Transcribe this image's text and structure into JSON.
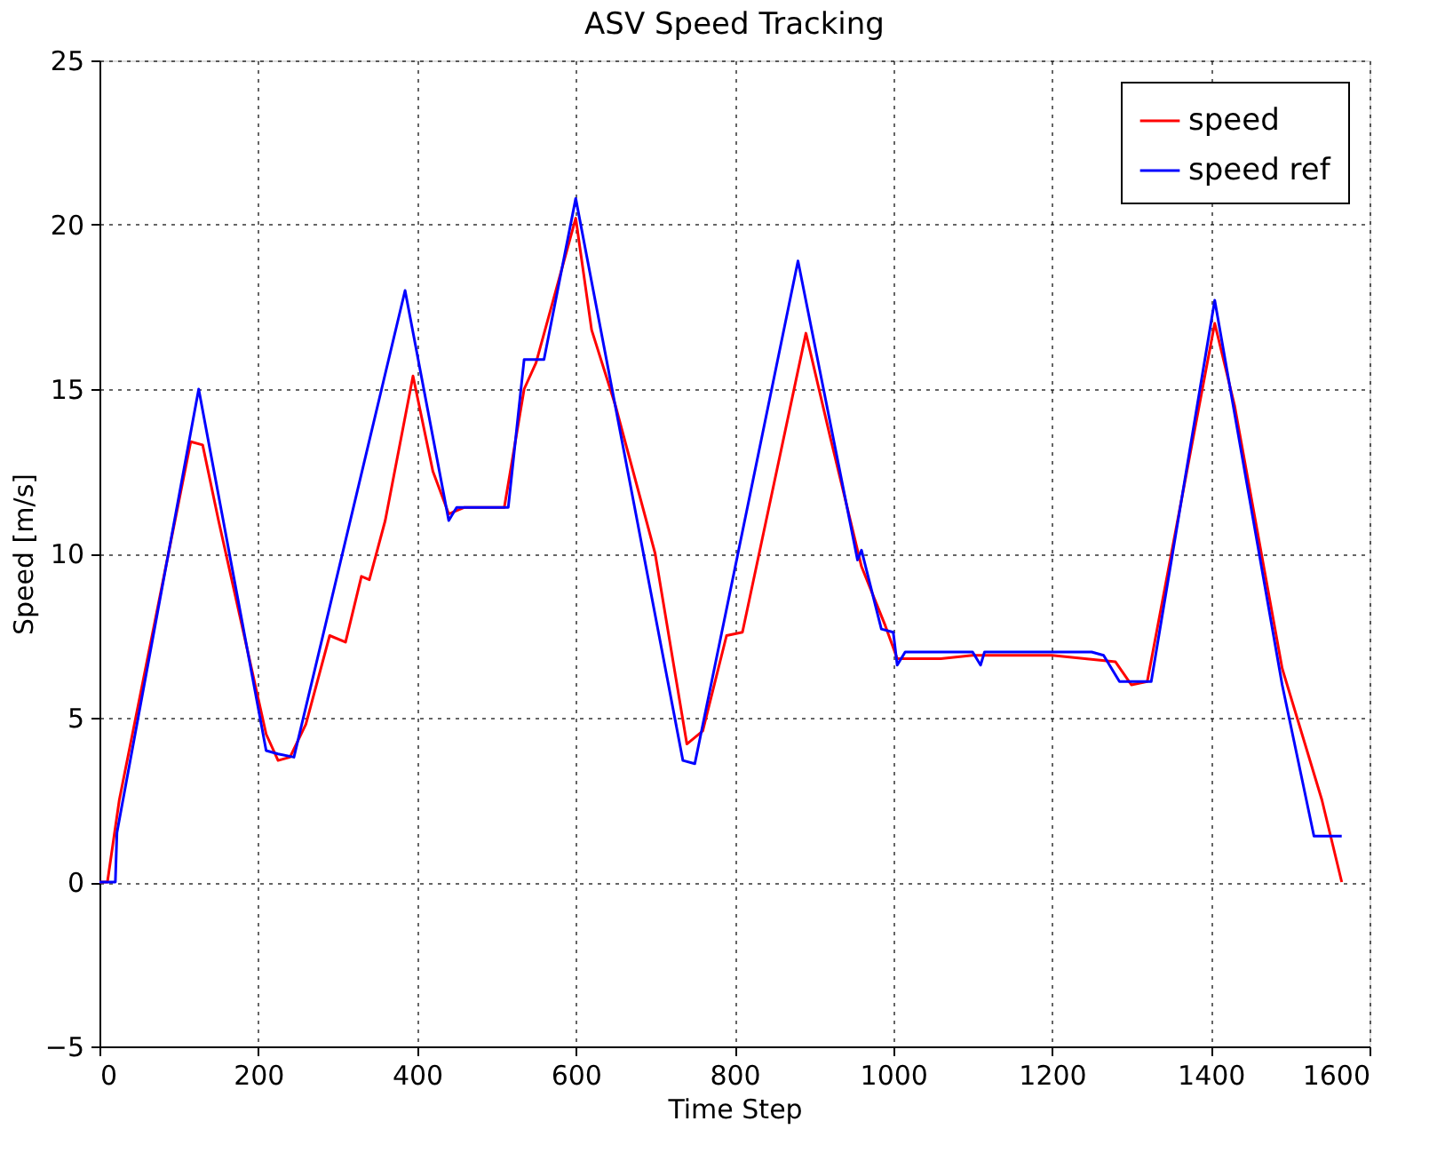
{
  "chart_data": {
    "type": "line",
    "title": "ASV Speed Tracking",
    "xlabel": "Time Step",
    "ylabel": "Speed [m/s]",
    "xlim": [
      0,
      1600
    ],
    "xticks": [
      0,
      200,
      400,
      600,
      800,
      1000,
      1200,
      1400,
      1600
    ],
    "ylim": [
      -5,
      25
    ],
    "yticks": [
      -5,
      0,
      5,
      10,
      15,
      20,
      25
    ],
    "grid": true,
    "legend": "top right",
    "line_style": "solid",
    "series": [
      {
        "name": "speed",
        "color": "#ff0000",
        "x": [
          0,
          10,
          25,
          115,
          130,
          150,
          210,
          225,
          240,
          260,
          290,
          310,
          330,
          340,
          360,
          395,
          420,
          440,
          460,
          510,
          535,
          550,
          600,
          620,
          650,
          700,
          740,
          760,
          790,
          810,
          890,
          920,
          960,
          990,
          1005,
          1060,
          1100,
          1200,
          1280,
          1300,
          1320,
          1405,
          1430,
          1490,
          1540,
          1560,
          1565
        ],
        "values": [
          0,
          0,
          2.5,
          13.4,
          13.3,
          11,
          4.5,
          3.7,
          3.8,
          4.8,
          7.5,
          7.3,
          9.3,
          9.2,
          11,
          15.4,
          12.5,
          11.2,
          11.4,
          11.4,
          15,
          15.8,
          20.2,
          16.8,
          14.5,
          10,
          4.2,
          4.6,
          7.5,
          7.6,
          16.7,
          13.6,
          9.6,
          7.8,
          6.8,
          6.8,
          6.9,
          6.9,
          6.7,
          6,
          6.1,
          17,
          14.5,
          6.5,
          2.5,
          0.5,
          0
        ]
      },
      {
        "name": "speed ref",
        "color": "#0000ff",
        "x": [
          0,
          20,
          22,
          125,
          210,
          225,
          245,
          385,
          440,
          450,
          515,
          535,
          560,
          600,
          735,
          750,
          880,
          955,
          960,
          985,
          1000,
          1005,
          1015,
          1100,
          1110,
          1115,
          1250,
          1265,
          1285,
          1325,
          1405,
          1490,
          1530,
          1565
        ],
        "values": [
          0,
          0,
          1.5,
          15,
          4,
          3.9,
          3.8,
          18,
          11,
          11.4,
          11.4,
          15.9,
          15.9,
          20.8,
          3.7,
          3.6,
          18.9,
          9.8,
          10.1,
          7.7,
          7.6,
          6.6,
          7,
          7,
          6.6,
          7,
          7,
          6.9,
          6.1,
          6.1,
          17.7,
          6,
          1.4,
          1.4
        ]
      }
    ]
  }
}
